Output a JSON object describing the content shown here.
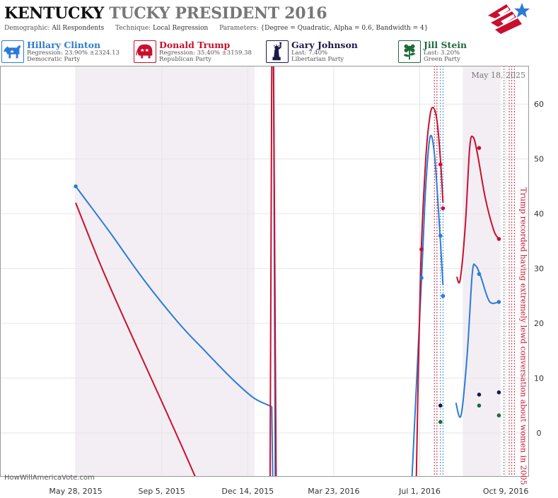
{
  "title": {
    "state": "KENTUCKY",
    "race": "TUCKY PRESIDENT 2016"
  },
  "params": {
    "demographic_label": "Demographic:",
    "demographic": "All Respondents",
    "technique_label": "Technique:",
    "technique": "Local Regression",
    "parameters_label": "Parameters:",
    "parameters": "{Degree = Quadratic, Alpha = 0.6, Bandwidth = 4}"
  },
  "candidates": [
    {
      "name": "Hillary Clinton",
      "line1": "Regression: 23.90% ±2324.13",
      "line2": "Democratic Party",
      "color": "#2b7bd6",
      "icon": "donkey-icon"
    },
    {
      "name": "Donald Trump",
      "line1": "Regression: 35.40% ±3159.38",
      "line2": "Republican Party",
      "color": "#c8102e",
      "icon": "elephant-icon"
    },
    {
      "name": "Gary Johnson",
      "line1": "Last: 7.40%",
      "line2": "Libertarian Party",
      "color": "#1a1a4a",
      "icon": "statue-of-liberty-icon"
    },
    {
      "name": "Jill Stein",
      "line1": "Last: 3.20%",
      "line2": "Green Party",
      "color": "#1d6b3a",
      "icon": "green-flower-icon"
    }
  ],
  "chart_data": {
    "type": "line",
    "date_label": "May 18, 2025",
    "watermark": "HowWillAmericaVote.com",
    "annotation": "Trump recorded having extremely lewd conversation about women in 2005",
    "x_ticks": [
      "May 28, 2015",
      "Sep 5, 2015",
      "Dec 14, 2015",
      "Mar 23, 2016",
      "Jul 1, 2016",
      "Oct 9, 2016"
    ],
    "y_ticks": [
      0,
      10,
      20,
      30,
      40,
      50,
      60
    ],
    "ylim": [
      -8,
      67
    ],
    "xlim": [
      "2015-03-01",
      "2016-11-05"
    ],
    "shaded_ranges": [
      [
        "2015-05-28",
        "2015-12-22"
      ],
      [
        "2016-08-20",
        "2016-10-03"
      ]
    ],
    "vlines": [
      {
        "date": "2016-07-18",
        "color": "#c8102e"
      },
      {
        "date": "2016-07-21",
        "color": "#c8102e"
      },
      {
        "date": "2016-07-25",
        "color": "#2b7bd6"
      },
      {
        "date": "2016-07-28",
        "color": "#2b7bd6"
      },
      {
        "date": "2016-10-07",
        "color": "#666666"
      },
      {
        "date": "2016-10-13",
        "color": "#c8102e"
      },
      {
        "date": "2016-10-16",
        "color": "#c8102e"
      },
      {
        "date": "2016-10-19",
        "color": "#c8102e"
      }
    ],
    "series": [
      {
        "name": "Hillary Clinton",
        "color": "#2b7bd6",
        "segments": [
          [
            [
              "2015-05-28",
              45
            ],
            [
              "2015-07-05",
              37
            ],
            [
              "2015-08-15",
              28
            ],
            [
              "2015-09-25",
              20
            ],
            [
              "2015-10-25",
              15
            ],
            [
              "2015-11-25",
              10
            ],
            [
              "2015-12-20",
              6.5
            ],
            [
              "2016-01-05",
              5.2
            ],
            [
              "2016-01-11",
              4.8
            ]
          ],
          [
            [
              "2016-01-11",
              4.8
            ],
            [
              "2016-01-12",
              -8
            ]
          ],
          [
            [
              "2016-01-13",
              67
            ],
            [
              "2016-01-15",
              -8
            ]
          ],
          [
            [
              "2016-06-22",
              -8
            ],
            [
              "2016-07-03",
              28
            ],
            [
              "2016-07-08",
              45
            ],
            [
              "2016-07-13",
              54
            ],
            [
              "2016-07-18",
              51
            ],
            [
              "2016-07-23",
              40
            ],
            [
              "2016-07-28",
              27
            ]
          ],
          [
            [
              "2016-08-12",
              5.5
            ],
            [
              "2016-08-18",
              3.2
            ],
            [
              "2016-08-25",
              14
            ],
            [
              "2016-08-31",
              29
            ],
            [
              "2016-09-04",
              30.5
            ],
            [
              "2016-09-10",
              28.5
            ],
            [
              "2016-09-20",
              24
            ],
            [
              "2016-10-01",
              23.9
            ]
          ]
        ],
        "points": [
          [
            "2015-05-28",
            45
          ],
          [
            "2016-07-03",
            28.3
          ],
          [
            "2016-07-25",
            36
          ],
          [
            "2016-07-28",
            25
          ],
          [
            "2016-09-08",
            29
          ],
          [
            "2016-10-01",
            23.9
          ]
        ]
      },
      {
        "name": "Donald Trump",
        "color": "#c8102e",
        "segments": [
          [
            [
              "2015-05-28",
              42
            ],
            [
              "2015-06-25",
              31
            ],
            [
              "2015-07-20",
              22
            ],
            [
              "2015-08-15",
              13
            ],
            [
              "2015-09-10",
              4
            ],
            [
              "2015-09-30",
              -3
            ],
            [
              "2015-10-14",
              -8
            ]
          ],
          [
            [
              "2016-01-09",
              -8
            ],
            [
              "2016-01-11",
              67
            ]
          ],
          [
            [
              "2016-01-13",
              67
            ],
            [
              "2016-01-16",
              -8
            ]
          ],
          [
            [
              "2016-06-27",
              -8
            ],
            [
              "2016-07-02",
              30
            ],
            [
              "2016-07-08",
              50
            ],
            [
              "2016-07-13",
              58
            ],
            [
              "2016-07-17",
              59.3
            ],
            [
              "2016-07-21",
              57
            ],
            [
              "2016-07-25",
              50
            ],
            [
              "2016-07-28",
              42
            ]
          ],
          [
            [
              "2016-08-13",
              28.5
            ],
            [
              "2016-08-17",
              28
            ],
            [
              "2016-08-23",
              38
            ],
            [
              "2016-08-28",
              52
            ],
            [
              "2016-09-01",
              54
            ],
            [
              "2016-09-06",
              51
            ],
            [
              "2016-09-15",
              43
            ],
            [
              "2016-09-25",
              37
            ],
            [
              "2016-10-01",
              35.4
            ]
          ]
        ],
        "points": [
          [
            "2016-07-03",
            33.5
          ],
          [
            "2016-07-25",
            49
          ],
          [
            "2016-07-28",
            41
          ],
          [
            "2016-09-08",
            52
          ],
          [
            "2016-10-01",
            35.4
          ]
        ]
      },
      {
        "name": "Gary Johnson",
        "color": "#1a1a4a",
        "segments": [],
        "points": [
          [
            "2016-07-25",
            5
          ],
          [
            "2016-09-08",
            7
          ],
          [
            "2016-10-01",
            7.4
          ]
        ]
      },
      {
        "name": "Jill Stein",
        "color": "#1d6b3a",
        "segments": [],
        "points": [
          [
            "2016-07-25",
            2
          ],
          [
            "2016-09-08",
            5
          ],
          [
            "2016-10-01",
            3.2
          ]
        ]
      }
    ]
  }
}
